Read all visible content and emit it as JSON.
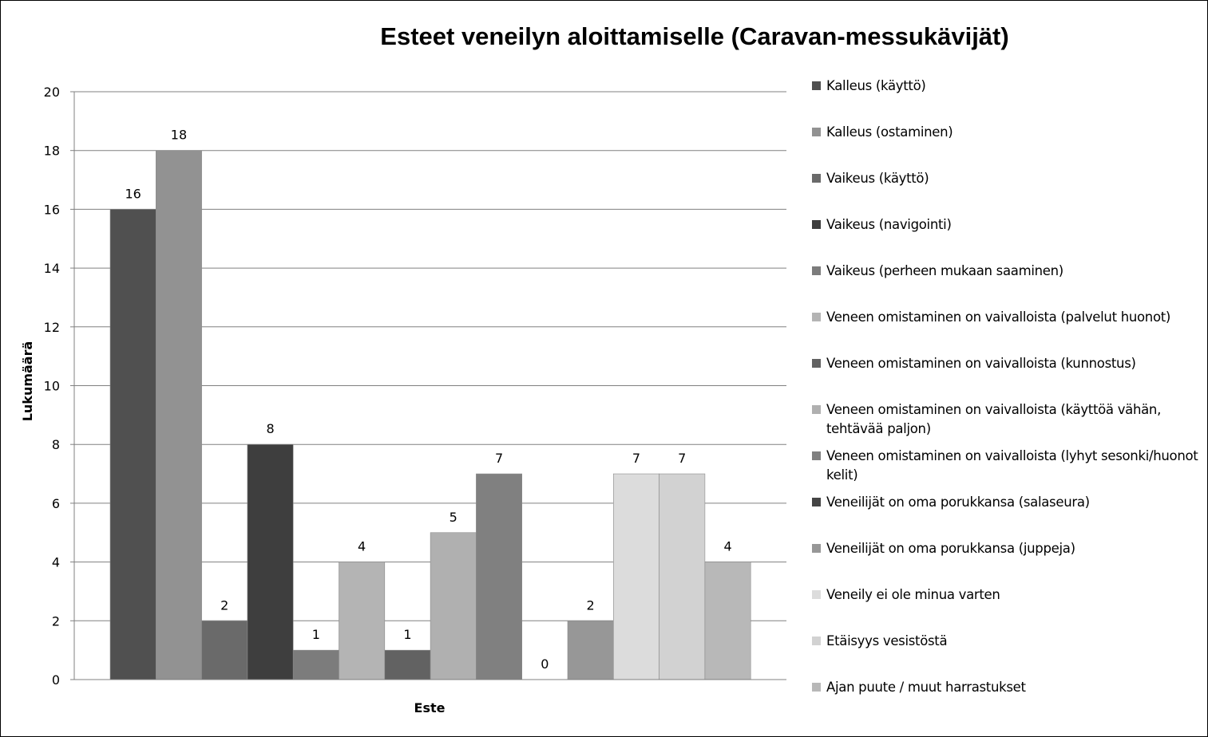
{
  "chart_data": {
    "type": "bar",
    "title": "Esteet veneilyn aloittamiselle (Caravan-messukävijät)",
    "xlabel": "Este",
    "ylabel": "Lukumäärä",
    "ylim": [
      0,
      20
    ],
    "yticks": [
      0,
      2,
      4,
      6,
      8,
      10,
      12,
      14,
      16,
      18,
      20
    ],
    "grid": true,
    "legend_position": "right",
    "series": [
      {
        "name": "Kalleus (käyttö)",
        "values": [
          16
        ],
        "color": "#505050"
      },
      {
        "name": "Kalleus (ostaminen)",
        "values": [
          18
        ],
        "color": "#929292"
      },
      {
        "name": "Vaikeus (käyttö)",
        "values": [
          2
        ],
        "color": "#6a6a6a"
      },
      {
        "name": "Vaikeus (navigointi)",
        "values": [
          8
        ],
        "color": "#3e3e3e"
      },
      {
        "name": "Vaikeus (perheen mukaan saaminen)",
        "values": [
          1
        ],
        "color": "#7c7c7c"
      },
      {
        "name": "Veneen omistaminen on vaivalloista (palvelut huonot)",
        "values": [
          4
        ],
        "color": "#b4b4b4"
      },
      {
        "name": "Veneen omistaminen on vaivalloista (kunnostus)",
        "values": [
          1
        ],
        "color": "#626262"
      },
      {
        "name": "Veneen omistaminen on vaivalloista (käyttöä vähän, tehtävää paljon)",
        "values": [
          5
        ],
        "color": "#b0b0b0"
      },
      {
        "name": "Veneen omistaminen on vaivalloista (lyhyt sesonki/huonot kelit)",
        "values": [
          7
        ],
        "color": "#808080"
      },
      {
        "name": "Veneilijät on oma porukkansa (salaseura)",
        "values": [
          0
        ],
        "color": "#454545"
      },
      {
        "name": "Veneilijät on oma porukkansa (juppeja)",
        "values": [
          2
        ],
        "color": "#979797"
      },
      {
        "name": "Veneily ei ole minua varten",
        "values": [
          7
        ],
        "color": "#dcdcdc"
      },
      {
        "name": "Etäisyys vesistöstä",
        "values": [
          7
        ],
        "color": "#d2d2d2"
      },
      {
        "name": "Ajan puute / muut harrastukset",
        "values": [
          4
        ],
        "color": "#b8b8b8"
      }
    ]
  }
}
